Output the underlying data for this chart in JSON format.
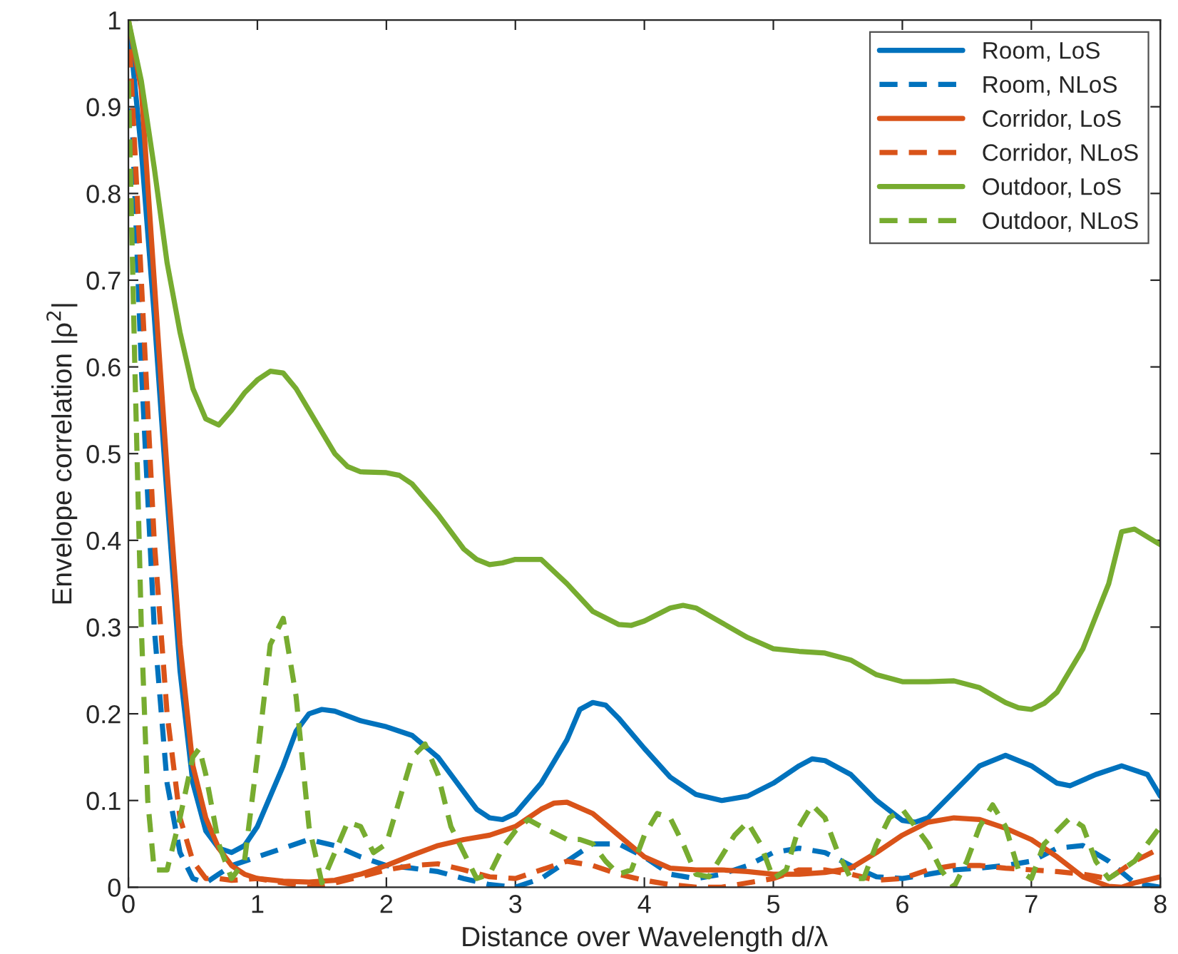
{
  "chart_data": {
    "type": "line",
    "xlabel": "Distance over Wavelength d/λ",
    "ylabel": "Envelope correlation |ρ$^{2}$|",
    "xlim": [
      0,
      8
    ],
    "ylim": [
      0,
      1
    ],
    "xticks": [
      0,
      1,
      2,
      3,
      4,
      5,
      6,
      7,
      8
    ],
    "yticks": [
      0,
      0.1,
      0.2,
      0.3,
      0.4,
      0.5,
      0.6,
      0.7,
      0.8,
      0.9,
      1
    ],
    "grid": false,
    "legend": "top right",
    "marker": "none",
    "series": [
      {
        "name": "Room, LoS",
        "color": "#0072bd",
        "line_style": "solid",
        "x": [
          0,
          0.1,
          0.2,
          0.3,
          0.4,
          0.5,
          0.6,
          0.7,
          0.8,
          0.9,
          1.0,
          1.1,
          1.2,
          1.3,
          1.4,
          1.5,
          1.6,
          1.8,
          2.0,
          2.2,
          2.4,
          2.6,
          2.7,
          2.8,
          2.9,
          3.0,
          3.2,
          3.4,
          3.5,
          3.6,
          3.7,
          3.8,
          4.0,
          4.2,
          4.4,
          4.6,
          4.8,
          5.0,
          5.2,
          5.3,
          5.4,
          5.6,
          5.8,
          6.0,
          6.1,
          6.2,
          6.4,
          6.6,
          6.8,
          7.0,
          7.2,
          7.3,
          7.5,
          7.7,
          7.9,
          8.0
        ],
        "values": [
          1,
          0.85,
          0.66,
          0.45,
          0.25,
          0.12,
          0.065,
          0.045,
          0.04,
          0.048,
          0.07,
          0.105,
          0.14,
          0.18,
          0.2,
          0.205,
          0.203,
          0.192,
          0.185,
          0.175,
          0.15,
          0.11,
          0.09,
          0.08,
          0.078,
          0.085,
          0.12,
          0.17,
          0.205,
          0.213,
          0.21,
          0.195,
          0.16,
          0.127,
          0.107,
          0.1,
          0.105,
          0.12,
          0.14,
          0.148,
          0.146,
          0.13,
          0.1,
          0.077,
          0.075,
          0.08,
          0.11,
          0.14,
          0.152,
          0.14,
          0.12,
          0.117,
          0.13,
          0.14,
          0.13,
          0.105
        ]
      },
      {
        "name": "Room, NLoS",
        "color": "#0072bd",
        "line_style": "dashed",
        "x": [
          0,
          0.1,
          0.2,
          0.3,
          0.4,
          0.5,
          0.6,
          0.7,
          0.8,
          1.0,
          1.2,
          1.4,
          1.6,
          1.8,
          2.0,
          2.2,
          2.4,
          2.6,
          2.8,
          3.0,
          3.2,
          3.4,
          3.6,
          3.8,
          4.0,
          4.2,
          4.4,
          4.6,
          4.8,
          5.0,
          5.2,
          5.4,
          5.6,
          5.8,
          6.0,
          6.2,
          6.4,
          6.6,
          6.8,
          7.0,
          7.2,
          7.4,
          7.6,
          7.8,
          8.0
        ],
        "values": [
          1,
          0.6,
          0.3,
          0.12,
          0.04,
          0.01,
          0.005,
          0.015,
          0.025,
          0.035,
          0.045,
          0.055,
          0.048,
          0.035,
          0.025,
          0.022,
          0.018,
          0.01,
          0.003,
          0.0,
          0.01,
          0.03,
          0.05,
          0.05,
          0.035,
          0.015,
          0.01,
          0.015,
          0.025,
          0.04,
          0.045,
          0.04,
          0.025,
          0.012,
          0.01,
          0.015,
          0.02,
          0.022,
          0.025,
          0.03,
          0.045,
          0.048,
          0.03,
          0.005,
          0.0
        ]
      },
      {
        "name": "Corridor, LoS",
        "color": "#d95319",
        "line_style": "solid",
        "x": [
          0,
          0.1,
          0.2,
          0.3,
          0.4,
          0.5,
          0.6,
          0.7,
          0.8,
          0.9,
          1.0,
          1.2,
          1.4,
          1.6,
          1.8,
          2.0,
          2.2,
          2.4,
          2.6,
          2.8,
          3.0,
          3.2,
          3.3,
          3.4,
          3.6,
          3.8,
          4.0,
          4.2,
          4.4,
          4.6,
          4.8,
          5.0,
          5.2,
          5.4,
          5.6,
          5.8,
          6.0,
          6.2,
          6.4,
          6.6,
          6.8,
          7.0,
          7.2,
          7.4,
          7.6,
          7.7,
          7.8,
          8.0
        ],
        "values": [
          1,
          0.92,
          0.7,
          0.48,
          0.28,
          0.14,
          0.08,
          0.045,
          0.025,
          0.015,
          0.01,
          0.007,
          0.006,
          0.008,
          0.015,
          0.025,
          0.037,
          0.048,
          0.055,
          0.06,
          0.07,
          0.09,
          0.097,
          0.098,
          0.085,
          0.06,
          0.035,
          0.022,
          0.02,
          0.02,
          0.018,
          0.015,
          0.015,
          0.017,
          0.022,
          0.04,
          0.06,
          0.075,
          0.08,
          0.078,
          0.068,
          0.055,
          0.035,
          0.012,
          0.001,
          0.0,
          0.005,
          0.012
        ]
      },
      {
        "name": "Corridor, NLoS",
        "color": "#d95319",
        "line_style": "dashed",
        "x": [
          0,
          0.1,
          0.2,
          0.3,
          0.4,
          0.5,
          0.6,
          0.7,
          0.8,
          1.0,
          1.2,
          1.4,
          1.6,
          1.8,
          2.0,
          2.2,
          2.4,
          2.6,
          2.8,
          3.0,
          3.2,
          3.4,
          3.6,
          3.8,
          4.0,
          4.2,
          4.4,
          4.6,
          4.8,
          5.0,
          5.2,
          5.4,
          5.6,
          5.8,
          6.0,
          6.2,
          6.4,
          6.6,
          6.8,
          7.0,
          7.2,
          7.4,
          7.6,
          7.8,
          8.0
        ],
        "values": [
          1,
          0.7,
          0.4,
          0.2,
          0.08,
          0.03,
          0.01,
          0.01,
          0.008,
          0.01,
          0.005,
          0.0,
          0.005,
          0.012,
          0.02,
          0.025,
          0.027,
          0.02,
          0.012,
          0.01,
          0.02,
          0.03,
          0.025,
          0.015,
          0.008,
          0.003,
          0.0,
          0.0,
          0.005,
          0.01,
          0.02,
          0.02,
          0.015,
          0.008,
          0.01,
          0.02,
          0.025,
          0.025,
          0.022,
          0.02,
          0.018,
          0.015,
          0.01,
          0.03,
          0.045
        ]
      },
      {
        "name": "Outdoor, LoS",
        "color": "#77ac30",
        "line_style": "solid",
        "x": [
          0,
          0.1,
          0.2,
          0.3,
          0.4,
          0.5,
          0.6,
          0.7,
          0.8,
          0.9,
          1.0,
          1.1,
          1.2,
          1.3,
          1.4,
          1.5,
          1.6,
          1.7,
          1.8,
          2.0,
          2.1,
          2.2,
          2.4,
          2.6,
          2.7,
          2.8,
          2.9,
          3.0,
          3.2,
          3.4,
          3.6,
          3.8,
          3.9,
          4.0,
          4.2,
          4.3,
          4.4,
          4.6,
          4.8,
          5.0,
          5.2,
          5.4,
          5.6,
          5.8,
          6.0,
          6.2,
          6.4,
          6.6,
          6.8,
          6.9,
          7.0,
          7.1,
          7.2,
          7.4,
          7.6,
          7.7,
          7.8,
          8.0
        ],
        "values": [
          1,
          0.93,
          0.83,
          0.72,
          0.64,
          0.575,
          0.54,
          0.533,
          0.55,
          0.57,
          0.585,
          0.595,
          0.593,
          0.575,
          0.55,
          0.525,
          0.5,
          0.485,
          0.479,
          0.478,
          0.475,
          0.465,
          0.43,
          0.39,
          0.378,
          0.372,
          0.374,
          0.378,
          0.378,
          0.35,
          0.318,
          0.303,
          0.302,
          0.307,
          0.322,
          0.325,
          0.322,
          0.305,
          0.288,
          0.275,
          0.272,
          0.27,
          0.262,
          0.245,
          0.237,
          0.237,
          0.238,
          0.23,
          0.213,
          0.207,
          0.205,
          0.212,
          0.225,
          0.275,
          0.35,
          0.41,
          0.413,
          0.395
        ]
      },
      {
        "name": "Outdoor, NLoS",
        "color": "#77ac30",
        "line_style": "dashed",
        "x": [
          0,
          0.05,
          0.1,
          0.15,
          0.2,
          0.3,
          0.4,
          0.5,
          0.55,
          0.6,
          0.7,
          0.8,
          0.9,
          1.0,
          1.1,
          1.2,
          1.3,
          1.4,
          1.5,
          1.6,
          1.7,
          1.8,
          1.9,
          2.0,
          2.1,
          2.2,
          2.3,
          2.4,
          2.5,
          2.7,
          2.8,
          2.9,
          3.0,
          3.1,
          3.2,
          3.4,
          3.5,
          3.6,
          3.7,
          3.8,
          3.9,
          4.0,
          4.1,
          4.2,
          4.3,
          4.4,
          4.5,
          4.7,
          4.8,
          4.9,
          5.0,
          5.1,
          5.2,
          5.3,
          5.4,
          5.5,
          5.6,
          5.7,
          5.8,
          5.9,
          6.0,
          6.2,
          6.3,
          6.4,
          6.5,
          6.6,
          6.7,
          6.8,
          6.9,
          7.0,
          7.1,
          7.3,
          7.4,
          7.5,
          7.6,
          7.8,
          7.9,
          8.0
        ],
        "values": [
          0.93,
          0.6,
          0.3,
          0.1,
          0.02,
          0.02,
          0.08,
          0.15,
          0.16,
          0.13,
          0.05,
          0.01,
          0.03,
          0.15,
          0.28,
          0.31,
          0.22,
          0.07,
          0.005,
          0.04,
          0.075,
          0.07,
          0.04,
          0.05,
          0.1,
          0.15,
          0.165,
          0.13,
          0.07,
          0.01,
          0.015,
          0.045,
          0.065,
          0.078,
          0.07,
          0.055,
          0.055,
          0.05,
          0.03,
          0.015,
          0.02,
          0.06,
          0.085,
          0.08,
          0.05,
          0.015,
          0.012,
          0.06,
          0.075,
          0.05,
          0.01,
          0.02,
          0.07,
          0.095,
          0.08,
          0.04,
          0.01,
          0.01,
          0.05,
          0.08,
          0.09,
          0.05,
          0.02,
          0.0,
          0.03,
          0.07,
          0.095,
          0.07,
          0.02,
          0.01,
          0.05,
          0.08,
          0.07,
          0.03,
          0.01,
          0.03,
          0.05,
          0.07
        ]
      }
    ]
  }
}
